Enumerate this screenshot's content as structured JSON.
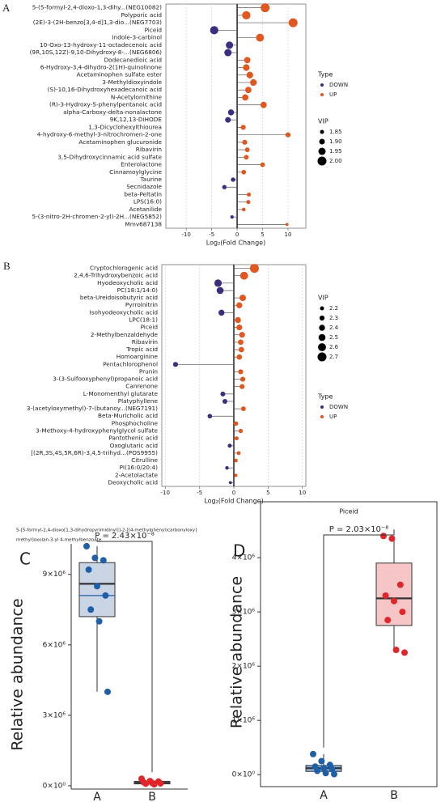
{
  "chart_data": [
    {
      "type": "lollipop",
      "panel": "A",
      "categories": [
        "5-(5-formyl-2,4-dioxo-1,3-dihy...(NEG10082)",
        "Polyporic acid",
        "(2E)-3-(2H-benzo[3,4-d]1,3-dio...(NEG7703)",
        "Piceid",
        "Indole-3-carbinol",
        "10-Oxo-13-hydroxy-11-octadecenoic acid",
        "(9R,10S,12Z)-9,10-Dihydroxy-8-...(NEG6806)",
        "Dodecanedioic acid",
        "6-Hydroxy-3,4-dihydro-2(1H)-quinolinone",
        "Acetaminophen sulfate ester",
        "3-Methyldioxyindole",
        "(S)-10,16-Dihydroxyhexadecanoic acid",
        "N-Acetylornithine",
        "(R)-3-Hydroxy-5-phenylpentanoic acid",
        "alpha-Carboxy-delta-nonalactone",
        "9K,12,13-DiHODE",
        "1,3-Dicyclohexylthiourea",
        "4-hydroxy-6-methyl-3-nitrochromen-2-one",
        "Acetaminophen glucuronide",
        "Ribavirin",
        "3,5-Dihydroxycinnamic acid sulfate",
        "Enterolactone",
        "Cinnamoylglycine",
        "Taurine",
        "Secnidazole",
        "beta-Peltatin",
        "LPS(16:0)",
        "Acetanilide",
        "5-(3-nitro-2H-chromen-2-yl)-2H...(NEG5852)",
        "Mmv687138"
      ],
      "series": [
        {
          "name": "DOWN",
          "color": "#3b2d80",
          "values": [
            null,
            null,
            null,
            -4.5,
            null,
            -1.5,
            -1.8,
            null,
            null,
            null,
            null,
            null,
            null,
            null,
            -1.2,
            -1.8,
            null,
            null,
            null,
            null,
            null,
            null,
            null,
            -0.8,
            -2.5,
            null,
            null,
            null,
            -1.0,
            null
          ]
        },
        {
          "name": "UP",
          "color": "#e2561f",
          "values": [
            5.5,
            1.8,
            11,
            null,
            4.5,
            null,
            null,
            2.0,
            1.8,
            2.5,
            3.2,
            2.2,
            1.6,
            5.2,
            null,
            null,
            1.2,
            10,
            1.5,
            2,
            1.8,
            5,
            1.3,
            null,
            null,
            2.3,
            2.2,
            1.3,
            null,
            9.8
          ]
        }
      ],
      "vip": [
        2.0,
        1.98,
        2.0,
        1.98,
        1.97,
        1.95,
        1.95,
        1.92,
        1.93,
        1.93,
        1.93,
        1.92,
        1.92,
        1.92,
        1.91,
        1.9,
        1.88,
        1.88,
        1.88,
        1.87,
        1.87,
        1.87,
        1.87,
        1.86,
        1.86,
        1.85,
        1.85,
        1.84,
        1.83,
        1.82
      ],
      "xlim": [
        -14,
        13.5
      ],
      "xticks": [
        -10,
        -5,
        0,
        5,
        10
      ],
      "xlabel": "Log₂(Fold Change)",
      "grid": true,
      "legend_type_title": "Type",
      "legend_size_title": "VIP",
      "size_ticks": [
        1.85,
        {
          "value": 1.9,
          "label": "1.90"
        },
        1.95,
        {
          "value": 2.0,
          "label": "2.00"
        }
      ]
    },
    {
      "type": "lollipop",
      "panel": "B",
      "categories": [
        "Cryptochlorogenic acid",
        "2,4,6-Trihydroxybenzoic acid",
        "Hyodeoxycholic acid",
        "PC(18:1/14:0)",
        "beta-Ureidoisobutyric acid",
        "Pyrrolnitrin",
        "Isohyodeoxycholic acid",
        "LPC(18:1)",
        "Piceid",
        "2-Methylbenzaldehyde",
        "Ribavirin",
        "Tropic acid",
        "Homoarginine",
        "Pentachlorophenol",
        "Prunin",
        "3-(3-Sulfooxyphenyl)propanoic acid",
        "Canrenone",
        "L-Monomenthyl glutarate",
        "Platyphyllene",
        "3-(acetyloxymethyl)-7-(butanoy...(NEG7191)",
        "Beta-Muricholic acid",
        "Phosphocholine",
        "3-Methoxy-4-hydroxyphenylglycol sulfate",
        "Pantothenic acid",
        "Oxoglutaric acid",
        "[(2R,3S,4S,5R,6R)-3,4,5-trihyd...(POS9955)",
        "Citrulline",
        "PI(16:0/20:4)",
        "2-Acetolactate",
        "Deoxycholic acid"
      ],
      "series": [
        {
          "name": "DOWN",
          "color": "#3b2d80",
          "values": [
            null,
            null,
            -2.3,
            -2,
            null,
            null,
            -1.8,
            null,
            null,
            null,
            null,
            null,
            null,
            -8.5,
            null,
            null,
            null,
            -1.6,
            -1.3,
            null,
            -3.5,
            null,
            null,
            null,
            -0.6,
            null,
            null,
            -1.0,
            null,
            -0.5
          ]
        },
        {
          "name": "UP",
          "color": "#e2561f",
          "values": [
            3,
            1.5,
            null,
            null,
            1.3,
            0.8,
            null,
            0.6,
            0.8,
            1.2,
            1.0,
            1.1,
            0.8,
            null,
            1.0,
            1.3,
            1.2,
            null,
            null,
            1.4,
            null,
            0.3,
            1.0,
            0.4,
            null,
            0.7,
            0.3,
            null,
            0.3,
            null
          ]
        }
      ],
      "vip": [
        2.7,
        2.6,
        2.55,
        2.5,
        2.45,
        2.4,
        2.4,
        2.4,
        2.38,
        2.38,
        2.35,
        2.35,
        2.33,
        2.3,
        2.3,
        2.3,
        2.3,
        2.28,
        2.28,
        2.27,
        2.25,
        2.25,
        2.23,
        2.2,
        2.2,
        2.18,
        2.17,
        2.15,
        2.13,
        2.1
      ],
      "xlim": [
        -10.5,
        10.5
      ],
      "xticks": [
        -10,
        -5,
        0,
        5,
        10
      ],
      "xlabel": "Log₂(Fold Change)",
      "grid": true,
      "legend_type_title": "Type",
      "legend_size_title": "VIP",
      "size_ticks": [
        2.2,
        2.3,
        2.4,
        2.5,
        2.6,
        2.7
      ]
    },
    {
      "type": "box",
      "panel": "C",
      "title_lines": [
        "5-[5-formyl-2,4-dioxo[1,3-dihydropyrimidinyl]]-2-[[4-methylphenyl)carbonyloxy]",
        "methyl]oxolan-3-yl 4-methylbenzoate"
      ],
      "ylabel": "Relative abundance",
      "p_label": "P = 2.43×10⁻⁸",
      "frame": false,
      "ylim": [
        -140000,
        10300000
      ],
      "yticks": [
        {
          "value": 0,
          "label": "0×10⁰"
        },
        {
          "value": 3000000,
          "label": "3×10⁶"
        },
        {
          "value": 6000000,
          "label": "6×10⁶"
        },
        {
          "value": 9000000,
          "label": "9×10⁶"
        }
      ],
      "categories": [
        "A",
        "B"
      ],
      "groups": [
        {
          "color": "#1f5fa8",
          "fill": "#c9d5e4",
          "points": [
            10200000,
            9700000,
            9600000,
            9200000,
            8500000,
            8100000,
            7500000,
            7000000,
            4000000
          ],
          "q1": 7200000,
          "median": 8600000,
          "q3": 9500000,
          "whisker_low": 4000000,
          "whisker_high": 10200000,
          "mean": 8100000
        },
        {
          "color": "#e0262a",
          "fill": "#f6c6c6",
          "points": [
            300000,
            200000,
            180000,
            150000,
            120000,
            100000,
            90000,
            60000
          ],
          "q1": 80000,
          "median": 130000,
          "q3": 190000,
          "whisker_low": 60000,
          "whisker_high": 300000
        }
      ]
    },
    {
      "type": "box",
      "panel": "D",
      "title": "Piceid",
      "ylabel": "Relative abundance",
      "p_label": "P = 2.03×10⁻⁸",
      "frame": true,
      "ylim": [
        -220000,
        5030000
      ],
      "yticks": [
        {
          "value": 0,
          "label": "0×10⁰"
        },
        {
          "value": 1000000,
          "label": "1×10⁶"
        },
        {
          "value": 2000000,
          "label": "2×10⁶"
        },
        {
          "value": 3000000,
          "label": "3×10⁶"
        },
        {
          "value": 4000000,
          "label": "4×10⁶"
        }
      ],
      "categories": [
        "A",
        "B"
      ],
      "groups": [
        {
          "color": "#1f5fa8",
          "fill": "#8fb3d9",
          "points": [
            380000,
            250000,
            180000,
            150000,
            120000,
            100000,
            70000,
            30000,
            10000
          ],
          "q1": 60000,
          "median": 120000,
          "q3": 170000,
          "whisker_low": 10000,
          "whisker_high": 380000
        },
        {
          "color": "#e0262a",
          "fill": "#f6c6c6",
          "points": [
            4400000,
            4350000,
            3500000,
            3300000,
            3200000,
            3000000,
            2850000,
            2300000,
            2250000
          ],
          "q1": 2750000,
          "median": 3250000,
          "q3": 3900000,
          "whisker_low": 2250000,
          "whisker_high": 4400000
        }
      ]
    }
  ]
}
